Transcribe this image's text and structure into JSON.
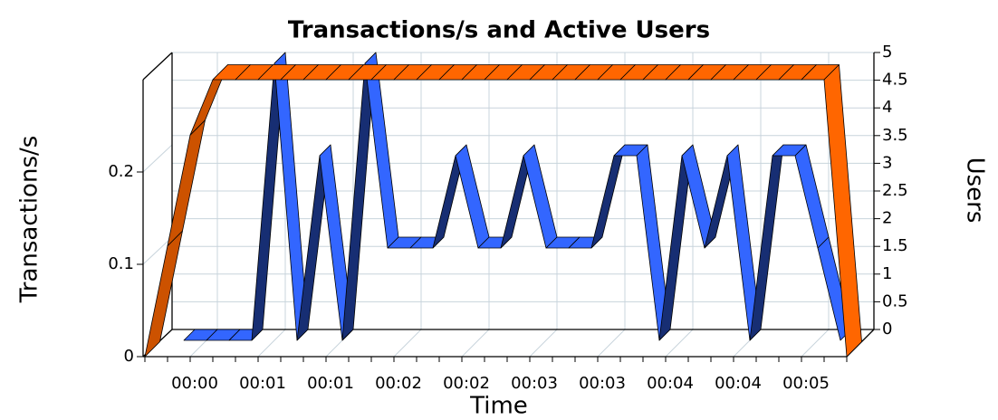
{
  "chart_data": {
    "type": "line3d",
    "title": "Transactions/s and Active Users",
    "xlabel": "Time",
    "ylabel": "Transactions/s",
    "y2label": "Users",
    "categories": [
      null,
      null,
      "00:00",
      null,
      null,
      "00:01",
      null,
      null,
      "00:01",
      null,
      null,
      "00:02",
      null,
      null,
      "00:02",
      null,
      null,
      "00:03",
      null,
      null,
      "00:03",
      null,
      null,
      "00:04",
      null,
      null,
      "00:04",
      null,
      null,
      "00:05",
      null,
      null
    ],
    "series": [
      {
        "name": "Transactions/s",
        "color": "#3366ff",
        "axis": "y",
        "values": [
          null,
          0,
          0,
          0,
          0,
          0.3,
          0,
          0.2,
          0,
          0.3,
          0.1,
          0.1,
          0.1,
          0.2,
          0.1,
          0.1,
          0.2,
          0.1,
          0.1,
          0.1,
          0.2,
          0.2,
          0,
          0.2,
          0.1,
          0.2,
          0,
          0.2,
          0.2,
          0.1,
          0,
          null
        ]
      },
      {
        "name": "Users",
        "color": "#ff6600",
        "axis": "y2",
        "values": [
          0,
          2,
          4,
          5,
          5,
          5,
          5,
          5,
          5,
          5,
          5,
          5,
          5,
          5,
          5,
          5,
          5,
          5,
          5,
          5,
          5,
          5,
          5,
          5,
          5,
          5,
          5,
          5,
          5,
          5,
          5,
          0
        ]
      }
    ],
    "ylim": [
      0,
      0.3
    ],
    "yticks": [
      0,
      0.1,
      0.2
    ],
    "y2lim": [
      0,
      5
    ],
    "y2ticks": [
      0,
      0.5,
      1,
      1.5,
      2,
      2.5,
      3,
      3.5,
      4,
      4.5,
      5
    ],
    "grid": true
  }
}
